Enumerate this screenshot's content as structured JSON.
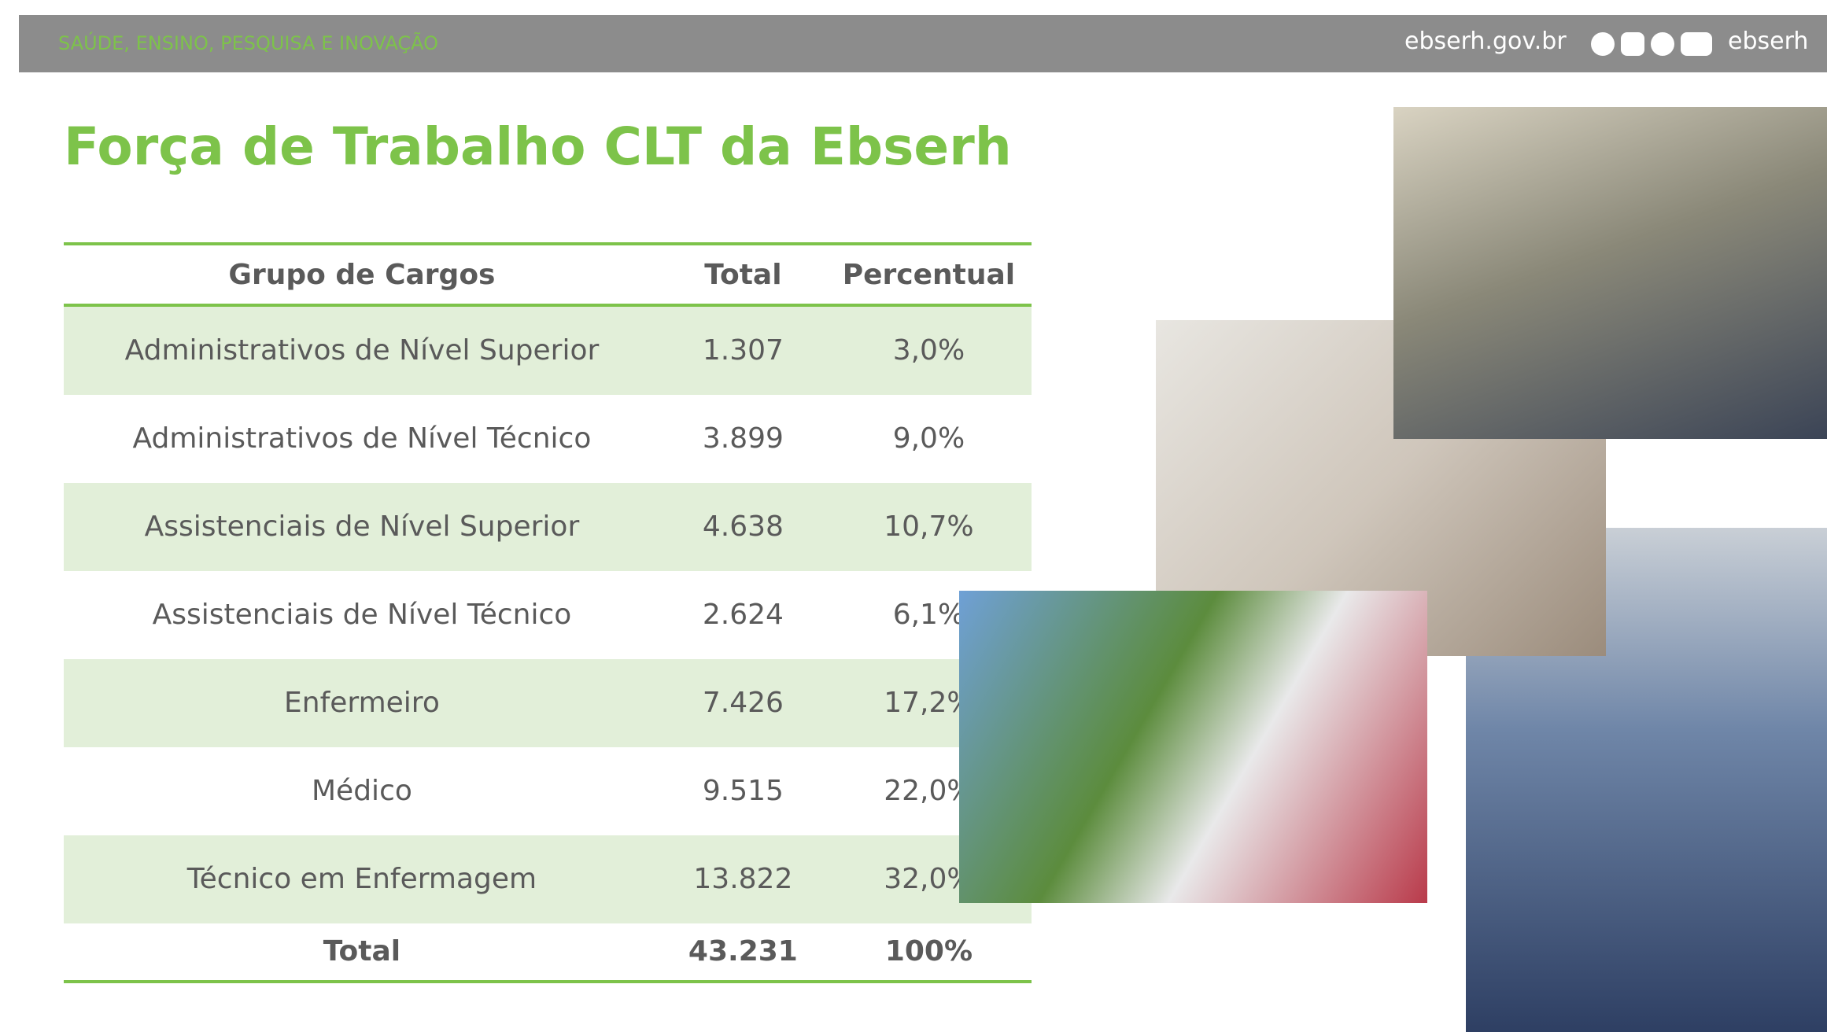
{
  "header": {
    "tagline": "SAÚDE, ENSINO, PESQUISA E INOVAÇÃO",
    "site": "ebserh.gov.br",
    "handle": "ebserh"
  },
  "title": "Força de Trabalho CLT da Ebserh",
  "table": {
    "columns": [
      "Grupo de Cargos",
      "Total",
      "Percentual"
    ],
    "rows": [
      [
        "Administrativos de Nível Superior",
        "1.307",
        "3,0%"
      ],
      [
        "Administrativos de Nível Técnico",
        "3.899",
        "9,0%"
      ],
      [
        "Assistenciais de Nível Superior",
        "4.638",
        "10,7%"
      ],
      [
        "Assistenciais de Nível Técnico",
        "2.624",
        "6,1%"
      ],
      [
        "Enfermeiro",
        "7.426",
        "17,2%"
      ],
      [
        "Médico",
        "9.515",
        "22,0%"
      ],
      [
        "Técnico em Enfermagem",
        "13.822",
        "32,0%"
      ]
    ],
    "total": [
      "Total",
      "43.231",
      "100%"
    ]
  }
}
